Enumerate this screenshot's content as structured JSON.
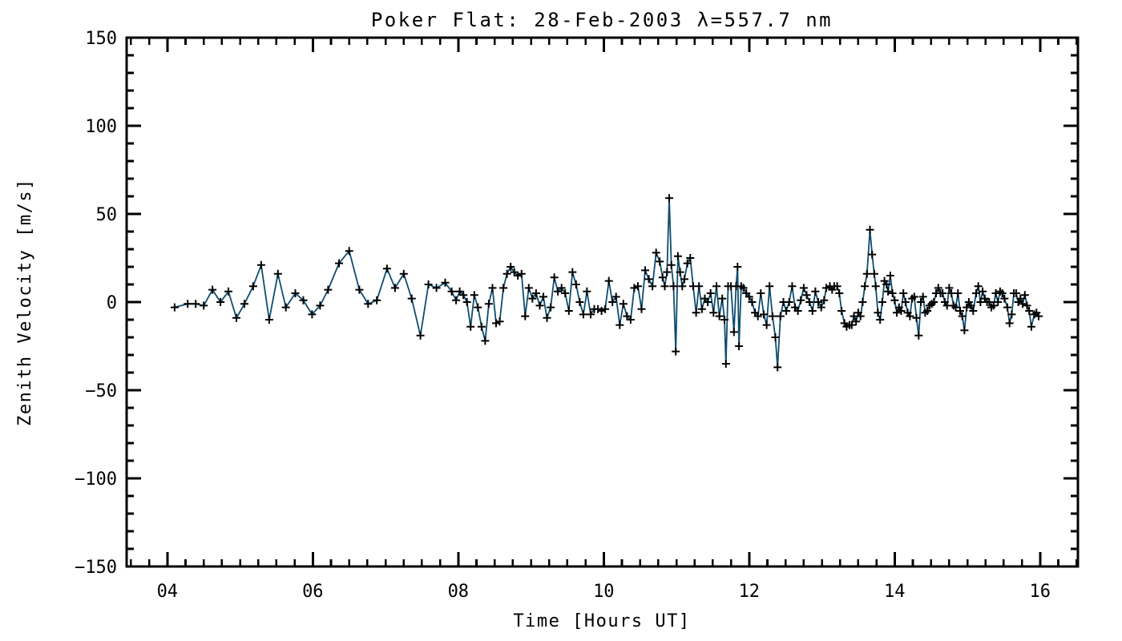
{
  "chart_data": {
    "type": "line",
    "title": "Poker Flat: 28-Feb-2003 λ=557.7 nm",
    "xlabel": "Time [Hours UT]",
    "ylabel": "Zenith Velocity [m/s]",
    "xlim": [
      3.44,
      16.52
    ],
    "ylim": [
      -150,
      150
    ],
    "x_major_ticks": [
      4,
      6,
      8,
      10,
      12,
      14,
      16
    ],
    "x_tick_labels": [
      "04",
      "06",
      "08",
      "10",
      "12",
      "14",
      "16"
    ],
    "x_minor_interval": 0.25,
    "y_major_ticks": [
      -150,
      -100,
      -50,
      0,
      50,
      100,
      150
    ],
    "y_tick_labels": [
      "−150",
      "−100",
      "−50",
      "0",
      "50",
      "100",
      "150"
    ],
    "y_minor_interval": 10,
    "grid": false,
    "legend": "none",
    "line_color": "#0e4d70",
    "marker": "plus",
    "marker_color": "#000000",
    "axis_color": "#000000",
    "background": "#ffffff",
    "series": [
      {
        "name": "zenith_velocity",
        "points": [
          [
            4.1,
            -3
          ],
          [
            4.28,
            -1
          ],
          [
            4.39,
            -1
          ],
          [
            4.5,
            -2
          ],
          [
            4.62,
            7
          ],
          [
            4.73,
            0
          ],
          [
            4.84,
            6
          ],
          [
            4.95,
            -9
          ],
          [
            5.06,
            -1
          ],
          [
            5.18,
            9
          ],
          [
            5.29,
            21
          ],
          [
            5.4,
            -10
          ],
          [
            5.52,
            16
          ],
          [
            5.63,
            -3
          ],
          [
            5.76,
            5
          ],
          [
            5.87,
            1
          ],
          [
            5.99,
            -7
          ],
          [
            6.1,
            -2
          ],
          [
            6.21,
            7
          ],
          [
            6.36,
            22
          ],
          [
            6.5,
            29
          ],
          [
            6.64,
            7
          ],
          [
            6.76,
            -1
          ],
          [
            6.88,
            1
          ],
          [
            7.02,
            19
          ],
          [
            7.13,
            8
          ],
          [
            7.25,
            16
          ],
          [
            7.36,
            2
          ],
          [
            7.48,
            -19
          ],
          [
            7.59,
            10
          ],
          [
            7.7,
            8
          ],
          [
            7.82,
            11
          ],
          [
            7.91,
            6
          ],
          [
            7.97,
            1
          ],
          [
            8.02,
            6
          ],
          [
            8.07,
            4
          ],
          [
            8.12,
            0
          ],
          [
            8.17,
            -14
          ],
          [
            8.22,
            4
          ],
          [
            8.27,
            -3
          ],
          [
            8.32,
            -14
          ],
          [
            8.37,
            -22
          ],
          [
            8.42,
            -1
          ],
          [
            8.47,
            8
          ],
          [
            8.52,
            -12
          ],
          [
            8.57,
            -11
          ],
          [
            8.62,
            8
          ],
          [
            8.67,
            16
          ],
          [
            8.72,
            20
          ],
          [
            8.77,
            17
          ],
          [
            8.82,
            15
          ],
          [
            8.87,
            16
          ],
          [
            8.92,
            -8
          ],
          [
            8.97,
            8
          ],
          [
            9.02,
            2
          ],
          [
            9.07,
            5
          ],
          [
            9.12,
            -2
          ],
          [
            9.17,
            3
          ],
          [
            9.22,
            -9
          ],
          [
            9.27,
            -3
          ],
          [
            9.32,
            14
          ],
          [
            9.37,
            6
          ],
          [
            9.42,
            8
          ],
          [
            9.47,
            5
          ],
          [
            9.52,
            -5
          ],
          [
            9.57,
            17
          ],
          [
            9.62,
            10
          ],
          [
            9.67,
            0
          ],
          [
            9.72,
            -7
          ],
          [
            9.77,
            6
          ],
          [
            9.82,
            -7
          ],
          [
            9.87,
            -4
          ],
          [
            9.92,
            -4
          ],
          [
            9.97,
            -5
          ],
          [
            10.02,
            -4
          ],
          [
            10.07,
            12
          ],
          [
            10.12,
            0
          ],
          [
            10.17,
            3
          ],
          [
            10.22,
            -13
          ],
          [
            10.27,
            -1
          ],
          [
            10.32,
            -8
          ],
          [
            10.37,
            -10
          ],
          [
            10.42,
            8
          ],
          [
            10.47,
            9
          ],
          [
            10.52,
            -4
          ],
          [
            10.57,
            18
          ],
          [
            10.62,
            13
          ],
          [
            10.67,
            9
          ],
          [
            10.72,
            28
          ],
          [
            10.77,
            23
          ],
          [
            10.81,
            14
          ],
          [
            10.84,
            9
          ],
          [
            10.87,
            17
          ],
          [
            10.9,
            59
          ],
          [
            10.93,
            21
          ],
          [
            10.96,
            9
          ],
          [
            10.99,
            -28
          ],
          [
            11.02,
            26
          ],
          [
            11.05,
            17
          ],
          [
            11.08,
            9
          ],
          [
            11.11,
            13
          ],
          [
            11.15,
            22
          ],
          [
            11.19,
            25
          ],
          [
            11.23,
            9
          ],
          [
            11.27,
            -6
          ],
          [
            11.31,
            9
          ],
          [
            11.35,
            -4
          ],
          [
            11.39,
            2
          ],
          [
            11.43,
            0
          ],
          [
            11.47,
            5
          ],
          [
            11.51,
            -6
          ],
          [
            11.55,
            9
          ],
          [
            11.59,
            -8
          ],
          [
            11.63,
            2
          ],
          [
            11.66,
            -10
          ],
          [
            11.68,
            -35
          ],
          [
            11.71,
            9
          ],
          [
            11.75,
            9
          ],
          [
            11.79,
            -17
          ],
          [
            11.82,
            9
          ],
          [
            11.84,
            20
          ],
          [
            11.86,
            -25
          ],
          [
            11.89,
            9
          ],
          [
            11.92,
            8
          ],
          [
            11.96,
            5
          ],
          [
            12.0,
            3
          ],
          [
            12.04,
            0
          ],
          [
            12.08,
            -6
          ],
          [
            12.12,
            -8
          ],
          [
            12.16,
            5
          ],
          [
            12.2,
            -7
          ],
          [
            12.24,
            -13
          ],
          [
            12.28,
            9
          ],
          [
            12.32,
            -8
          ],
          [
            12.36,
            -20
          ],
          [
            12.39,
            -37
          ],
          [
            12.43,
            -8
          ],
          [
            12.47,
            0
          ],
          [
            12.51,
            -5
          ],
          [
            12.55,
            0
          ],
          [
            12.59,
            9
          ],
          [
            12.63,
            -3
          ],
          [
            12.67,
            -5
          ],
          [
            12.71,
            1
          ],
          [
            12.75,
            8
          ],
          [
            12.79,
            4
          ],
          [
            12.83,
            0
          ],
          [
            12.87,
            -5
          ],
          [
            12.91,
            6
          ],
          [
            12.95,
            0
          ],
          [
            12.99,
            -3
          ],
          [
            13.03,
            1
          ],
          [
            13.06,
            8
          ],
          [
            13.11,
            9
          ],
          [
            13.14,
            7
          ],
          [
            13.17,
            9
          ],
          [
            13.21,
            9
          ],
          [
            13.24,
            5
          ],
          [
            13.27,
            -5
          ],
          [
            13.31,
            -12
          ],
          [
            13.34,
            -14
          ],
          [
            13.38,
            -13
          ],
          [
            13.41,
            -13
          ],
          [
            13.44,
            -8
          ],
          [
            13.47,
            -11
          ],
          [
            13.5,
            -6
          ],
          [
            13.53,
            -8
          ],
          [
            13.56,
            0
          ],
          [
            13.59,
            9
          ],
          [
            13.62,
            16
          ],
          [
            13.66,
            41
          ],
          [
            13.69,
            27
          ],
          [
            13.72,
            16
          ],
          [
            13.74,
            9
          ],
          [
            13.77,
            -6
          ],
          [
            13.8,
            -10
          ],
          [
            13.83,
            0
          ],
          [
            13.86,
            12
          ],
          [
            13.89,
            10
          ],
          [
            13.91,
            6
          ],
          [
            13.94,
            15
          ],
          [
            13.97,
            5
          ],
          [
            14.0,
            1
          ],
          [
            14.03,
            -6
          ],
          [
            14.06,
            -3
          ],
          [
            14.09,
            -5
          ],
          [
            14.12,
            5
          ],
          [
            14.15,
            0
          ],
          [
            14.18,
            -6
          ],
          [
            14.21,
            -8
          ],
          [
            14.24,
            2
          ],
          [
            14.27,
            3
          ],
          [
            14.3,
            -9
          ],
          [
            14.33,
            -19
          ],
          [
            14.36,
            0
          ],
          [
            14.39,
            3
          ],
          [
            14.42,
            -6
          ],
          [
            14.45,
            -5
          ],
          [
            14.48,
            -2
          ],
          [
            14.51,
            -1
          ],
          [
            14.54,
            0
          ],
          [
            14.57,
            5
          ],
          [
            14.6,
            8
          ],
          [
            14.63,
            5
          ],
          [
            14.66,
            5
          ],
          [
            14.69,
            0
          ],
          [
            14.72,
            -2
          ],
          [
            14.75,
            8
          ],
          [
            14.78,
            5
          ],
          [
            14.81,
            -2
          ],
          [
            14.84,
            -3
          ],
          [
            14.87,
            5
          ],
          [
            14.9,
            -5
          ],
          [
            14.93,
            -8
          ],
          [
            14.96,
            -16
          ],
          [
            14.99,
            -3
          ],
          [
            15.02,
            0
          ],
          [
            15.05,
            -2
          ],
          [
            15.08,
            -5
          ],
          [
            15.12,
            5
          ],
          [
            15.15,
            9
          ],
          [
            15.18,
            0
          ],
          [
            15.21,
            6
          ],
          [
            15.24,
            2
          ],
          [
            15.27,
            0
          ],
          [
            15.3,
            0
          ],
          [
            15.33,
            -3
          ],
          [
            15.36,
            -2
          ],
          [
            15.39,
            5
          ],
          [
            15.42,
            0
          ],
          [
            15.45,
            6
          ],
          [
            15.48,
            5
          ],
          [
            15.51,
            2
          ],
          [
            15.55,
            -3
          ],
          [
            15.58,
            -12
          ],
          [
            15.61,
            -7
          ],
          [
            15.64,
            5
          ],
          [
            15.67,
            5
          ],
          [
            15.7,
            0
          ],
          [
            15.73,
            2
          ],
          [
            15.76,
            -1
          ],
          [
            15.79,
            4
          ],
          [
            15.82,
            -2
          ],
          [
            15.85,
            -5
          ],
          [
            15.88,
            -14
          ],
          [
            15.92,
            -7
          ],
          [
            15.95,
            -6
          ],
          [
            15.98,
            -8
          ]
        ]
      }
    ]
  }
}
